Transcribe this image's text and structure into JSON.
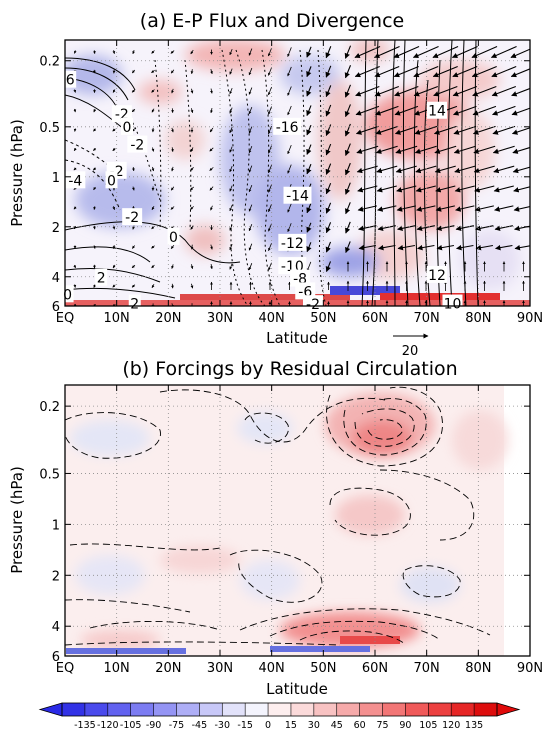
{
  "chart_data": [
    {
      "type": "contour",
      "title": "(a) E-P Flux and Divergence",
      "xlabel": "Latitude",
      "ylabel": "Pressure (hPa)",
      "xlim": [
        0,
        90
      ],
      "ylim": [
        6,
        0.15
      ],
      "y_scale": "log",
      "x_ticks": [
        "EQ",
        "10N",
        "20N",
        "30N",
        "40N",
        "50N",
        "60N",
        "70N",
        "80N",
        "90N"
      ],
      "y_ticks": [
        "0.2",
        "0.5",
        "1",
        "2",
        "4",
        "6"
      ],
      "grid": true,
      "contour_labels": [
        {
          "text": "6",
          "lat": 1,
          "p": 0.26
        },
        {
          "text": "-2",
          "lat": 11,
          "p": 0.42
        },
        {
          "text": "0",
          "lat": 12,
          "p": 0.5
        },
        {
          "text": "-2",
          "lat": 14,
          "p": 0.64
        },
        {
          "text": "-2",
          "lat": 10,
          "p": 0.92
        },
        {
          "text": "0",
          "lat": 9,
          "p": 1.05
        },
        {
          "text": "-4",
          "lat": 2,
          "p": 1.05
        },
        {
          "text": "-2",
          "lat": 13,
          "p": 1.75
        },
        {
          "text": "0",
          "lat": 21,
          "p": 2.3
        },
        {
          "text": "2",
          "lat": 7,
          "p": 4.05
        },
        {
          "text": "0",
          "lat": 0.5,
          "p": 5.1
        },
        {
          "text": "2",
          "lat": 13.5,
          "p": 5.8
        },
        {
          "text": "-16",
          "lat": 43,
          "p": 0.5
        },
        {
          "text": "-14",
          "lat": 45,
          "p": 1.3
        },
        {
          "text": "-12",
          "lat": 44,
          "p": 2.5
        },
        {
          "text": "-10",
          "lat": 44,
          "p": 3.45
        },
        {
          "text": "-8",
          "lat": 45.5,
          "p": 4.1
        },
        {
          "text": "-6",
          "lat": 46.5,
          "p": 4.9
        },
        {
          "text": "-2",
          "lat": 48,
          "p": 5.85
        },
        {
          "text": "14",
          "lat": 72,
          "p": 0.4
        },
        {
          "text": "12",
          "lat": 72,
          "p": 3.9
        },
        {
          "text": "10",
          "lat": 75,
          "p": 5.8
        }
      ],
      "reference_vector": {
        "label": "20"
      }
    },
    {
      "type": "contour",
      "title": "(b) Forcings by Residual Circulation",
      "xlabel": "Latitude",
      "ylabel": "Pressure (hPa)",
      "xlim": [
        0,
        90
      ],
      "ylim": [
        6,
        0.15
      ],
      "y_scale": "log",
      "x_ticks": [
        "EQ",
        "10N",
        "20N",
        "30N",
        "40N",
        "50N",
        "60N",
        "70N",
        "80N",
        "90N"
      ],
      "y_ticks": [
        "0.2",
        "0.5",
        "1",
        "2",
        "4",
        "6"
      ],
      "grid": true
    }
  ],
  "colorbar": {
    "labels": [
      "-135",
      "-120",
      "-105",
      "-90",
      "-75",
      "-45",
      "-30",
      "-15",
      "0",
      "15",
      "30",
      "45",
      "60",
      "75",
      "90",
      "105",
      "120",
      "135"
    ],
    "colors": [
      "#3232e6",
      "#4a4aec",
      "#6262f0",
      "#7c7cf2",
      "#9494f4",
      "#aeaef6",
      "#c8c8f8",
      "#e2e2fa",
      "#f4f4fd",
      "#fdeeee",
      "#fbdada",
      "#f8c2c2",
      "#f6aaaa",
      "#f49090",
      "#f27676",
      "#f05a5a",
      "#ec4040",
      "#e62626",
      "#dd0d0d"
    ]
  }
}
